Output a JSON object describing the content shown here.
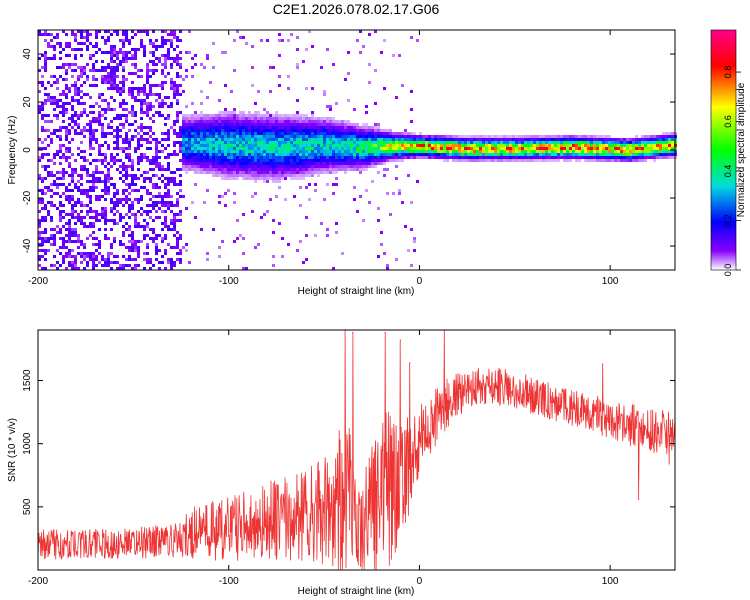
{
  "figure_title": "C2E1.2026.078.02.17.G06",
  "chart_data": [
    {
      "type": "heatmap",
      "title": "C2E1.2026.078.02.17.G06",
      "xlabel": "Height of straight line (km)",
      "ylabel": "Frequency (Hz)",
      "xlim": [
        -200,
        134
      ],
      "ylim": [
        -50,
        50
      ],
      "xticks": [
        -200,
        -100,
        0,
        100
      ],
      "yticks": [
        -40,
        -20,
        0,
        20,
        40
      ],
      "colorbar": {
        "label": "Normalized spectral amplitude",
        "range": [
          0,
          0.97
        ],
        "ticks": [
          "0.0",
          "0.2",
          "0.4",
          "0.6",
          "0.8"
        ],
        "tick_values": [
          0,
          0.2,
          0.4,
          0.6,
          0.8
        ],
        "colormap": [
          "#ffffff",
          "#8800ff",
          "#0000ff",
          "#00dddd",
          "#00ff00",
          "#ffff00",
          "#ff0000",
          "#ff0088"
        ]
      },
      "ridge": [
        {
          "x": -125,
          "freq": 3,
          "spread": 5,
          "amp": 0.3
        },
        {
          "x": -100,
          "freq": 2,
          "spread": 6,
          "amp": 0.35
        },
        {
          "x": -75,
          "freq": 1,
          "spread": 6,
          "amp": 0.35
        },
        {
          "x": -50,
          "freq": 2,
          "spread": 5,
          "amp": 0.35
        },
        {
          "x": -30,
          "freq": 1,
          "spread": 4,
          "amp": 0.4
        },
        {
          "x": -15,
          "freq": 1.5,
          "spread": 2.5,
          "amp": 0.6
        },
        {
          "x": 0,
          "freq": 1.5,
          "spread": 2,
          "amp": 0.7
        },
        {
          "x": 25,
          "freq": 0.5,
          "spread": 2,
          "amp": 0.75
        },
        {
          "x": 50,
          "freq": 0.5,
          "spread": 2,
          "amp": 0.7
        },
        {
          "x": 80,
          "freq": 1,
          "spread": 2,
          "amp": 0.75
        },
        {
          "x": 110,
          "freq": 0,
          "spread": 2,
          "amp": 0.7
        },
        {
          "x": 134,
          "freq": 2,
          "spread": 2,
          "amp": 0.7
        }
      ],
      "noise_region": {
        "x_from": -200,
        "x_to": -125,
        "amp_min": 0.05,
        "amp_max": 0.15
      }
    },
    {
      "type": "line",
      "xlabel": "Height of straight line (km)",
      "ylabel": "SNR (10 * v/v)",
      "xlim": [
        -200,
        134
      ],
      "ylim": [
        0,
        1900
      ],
      "xticks": [
        -200,
        -100,
        0,
        100
      ],
      "yticks": [
        500,
        1000,
        1500
      ],
      "series": [
        {
          "name": "SNR",
          "color": "#ee3333",
          "envelope": {
            "x": [
              -200,
              -180,
              -160,
              -140,
              -125,
              -120,
              -100,
              -80,
              -60,
              -45,
              -40,
              -35,
              -30,
              -25,
              -20,
              -15,
              -10,
              -5,
              0,
              10,
              20,
              30,
              40,
              50,
              60,
              80,
              100,
              120,
              134
            ],
            "mean": [
              200,
              200,
              210,
              220,
              240,
              300,
              330,
              380,
              430,
              480,
              550,
              600,
              380,
              480,
              600,
              650,
              700,
              850,
              1000,
              1250,
              1400,
              1450,
              1460,
              1430,
              1380,
              1280,
              1200,
              1100,
              1080
            ],
            "amp": [
              120,
              120,
              120,
              130,
              150,
              220,
              260,
              320,
              380,
              450,
              700,
              500,
              400,
              500,
              700,
              600,
              500,
              400,
              300,
              220,
              180,
              150,
              150,
              150,
              150,
              150,
              160,
              180,
              180
            ]
          },
          "spikes": [
            {
              "x": -39,
              "y": 1900
            },
            {
              "x": -35,
              "y": 1880
            },
            {
              "x": -18,
              "y": 1880
            },
            {
              "x": -10,
              "y": 1820
            },
            {
              "x": -5,
              "y": 1640
            },
            {
              "x": 13,
              "y": 1930
            },
            {
              "x": 96,
              "y": 1630
            },
            {
              "x": 115,
              "y": 560
            },
            {
              "x": 131,
              "y": 840
            }
          ]
        }
      ]
    }
  ]
}
